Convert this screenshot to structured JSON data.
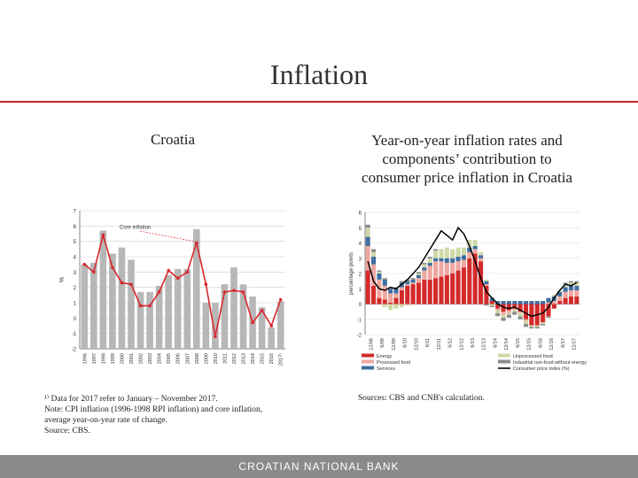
{
  "slide": {
    "title": "Inflation",
    "left_heading": "Croatia",
    "right_heading_lines": [
      "Year-on-year inflation rates and",
      "components’ contribution to",
      "consumer price inflation in Croatia"
    ],
    "left_notes": [
      "¹⁾ Data for 2017 refer to January – November 2017.",
      "Note: CPI inflation (1996-1998 RPI inflation) and core inflation,",
      "average year-on-year rate of change.",
      "Source: CBS."
    ],
    "right_source": "Sources: CBS and CNB's calculation.",
    "footer": "CROATIAN NATIONAL BANK"
  },
  "colors": {
    "accent": "#c8242b",
    "footer": "#8a8a8a"
  },
  "chart_data": [
    {
      "type": "bar",
      "ylabel": "%",
      "ylim": [
        -2,
        7
      ],
      "yticks": [
        -2,
        -1,
        0,
        1,
        2,
        3,
        4,
        5,
        6,
        7
      ],
      "categories": [
        "1996",
        "1997",
        "1998",
        "1999",
        "2000",
        "2001",
        "2002",
        "2003",
        "2004",
        "2005",
        "2006",
        "2007",
        "2008",
        "2009",
        "2010",
        "2011",
        "2012",
        "2013",
        "2014",
        "2015",
        "2016",
        "2017¹"
      ],
      "annotation": "Core inflation",
      "series": [
        {
          "name": "",
          "kind": "bar",
          "color": "#b7b7b7",
          "values": [
            3.5,
            3.6,
            5.7,
            4.2,
            4.6,
            3.8,
            1.7,
            1.7,
            2.1,
            2.8,
            3.2,
            3.2,
            5.8,
            1.0,
            1.0,
            2.2,
            3.3,
            2.2,
            1.4,
            0.7,
            -0.6,
            1.1
          ]
        },
        {
          "name": "Core inflation",
          "kind": "line",
          "color": "#d9272e",
          "values": [
            3.5,
            3.0,
            5.4,
            3.3,
            2.3,
            2.2,
            0.8,
            0.8,
            1.7,
            3.1,
            2.6,
            3.0,
            4.9,
            2.2,
            -1.2,
            1.7,
            1.8,
            1.7,
            -0.3,
            0.5,
            -0.5,
            1.2
          ]
        }
      ]
    },
    {
      "type": "area",
      "ylabel": "percentage points",
      "ylim": [
        -2,
        6
      ],
      "yticks": [
        -2,
        -1,
        0,
        1,
        2,
        3,
        4,
        5,
        6
      ],
      "categories": [
        "12/08",
        "6/09",
        "12/09",
        "6/10",
        "12/10",
        "6/11",
        "12/11",
        "6/12",
        "12/12",
        "6/13",
        "12/13",
        "6/14",
        "12/14",
        "6/15",
        "12/15",
        "6/16",
        "12/16",
        "6/17",
        "12/17"
      ],
      "legend": [
        "Energy",
        "Processed food",
        "Services",
        "Unprocessed food",
        "Industrial non-food without energy",
        "Consumer price index (%)"
      ],
      "legend_colors": [
        "#d42a2a",
        "#f0a7a0",
        "#3e6fa0",
        "#cfd9a8",
        "#8c8c8c",
        "#000000"
      ],
      "monthly_components": {
        "energy": [
          2.2,
          1.2,
          0.4,
          0.3,
          0.1,
          0.4,
          0.9,
          1.2,
          1.3,
          1.4,
          1.6,
          1.6,
          1.7,
          1.8,
          1.9,
          2.0,
          2.2,
          2.4,
          3.0,
          3.3,
          2.8,
          1.2,
          0.2,
          -0.3,
          -0.5,
          -0.4,
          -0.3,
          -0.5,
          -1.0,
          -1.4,
          -1.4,
          -1.2,
          -0.8,
          -0.3,
          0.2,
          0.4,
          0.5,
          0.5
        ],
        "processed": [
          1.6,
          1.4,
          1.2,
          0.9,
          0.6,
          0.3,
          0.2,
          0.1,
          0.1,
          0.3,
          0.6,
          0.9,
          1.1,
          1.0,
          0.8,
          0.7,
          0.6,
          0.5,
          0.4,
          0.3,
          0.2,
          0.1,
          0.0,
          -0.1,
          -0.2,
          -0.2,
          -0.1,
          -0.1,
          -0.1,
          0.0,
          0.0,
          0.0,
          0.1,
          0.2,
          0.3,
          0.4,
          0.4,
          0.4
        ],
        "services": [
          0.6,
          0.5,
          0.4,
          0.4,
          0.3,
          0.3,
          0.3,
          0.2,
          0.2,
          0.2,
          0.2,
          0.2,
          0.2,
          0.2,
          0.3,
          0.3,
          0.3,
          0.3,
          0.3,
          0.2,
          0.2,
          0.2,
          0.2,
          0.2,
          0.2,
          0.2,
          0.2,
          0.2,
          0.2,
          0.2,
          0.2,
          0.2,
          0.3,
          0.3,
          0.3,
          0.3,
          0.3,
          0.3
        ],
        "unprocessed": [
          0.6,
          0.3,
          0.1,
          -0.2,
          -0.4,
          -0.3,
          -0.2,
          -0.1,
          0.0,
          0.1,
          0.2,
          0.3,
          0.5,
          0.6,
          0.7,
          0.6,
          0.6,
          0.5,
          0.5,
          0.4,
          0.2,
          0.1,
          -0.1,
          -0.2,
          -0.2,
          -0.1,
          -0.1,
          -0.2,
          -0.2,
          -0.1,
          -0.1,
          -0.1,
          0.0,
          0.1,
          0.1,
          0.2,
          0.2,
          0.2
        ],
        "industrial": [
          0.2,
          0.2,
          0.1,
          0.1,
          0.1,
          0.1,
          0.1,
          0.1,
          0.1,
          0.1,
          0.1,
          0.1,
          0.1,
          0.0,
          0.0,
          0.0,
          0.0,
          0.0,
          0.0,
          0.0,
          0.0,
          -0.1,
          -0.1,
          -0.2,
          -0.2,
          -0.2,
          -0.2,
          -0.2,
          -0.2,
          -0.1,
          -0.1,
          -0.1,
          -0.1,
          0.0,
          0.0,
          0.1,
          0.1,
          0.1
        ],
        "cpi": [
          2.8,
          1.5,
          1.0,
          0.9,
          1.1,
          1.0,
          1.3,
          1.6,
          2.0,
          2.4,
          3.0,
          3.6,
          4.2,
          4.8,
          4.5,
          4.2,
          5.0,
          4.6,
          3.8,
          2.8,
          1.7,
          0.8,
          0.4,
          0.0,
          -0.2,
          -0.3,
          -0.2,
          -0.4,
          -0.6,
          -0.8,
          -0.7,
          -0.6,
          -0.2,
          0.4,
          0.9,
          1.3,
          1.2,
          1.4
        ]
      }
    }
  ]
}
